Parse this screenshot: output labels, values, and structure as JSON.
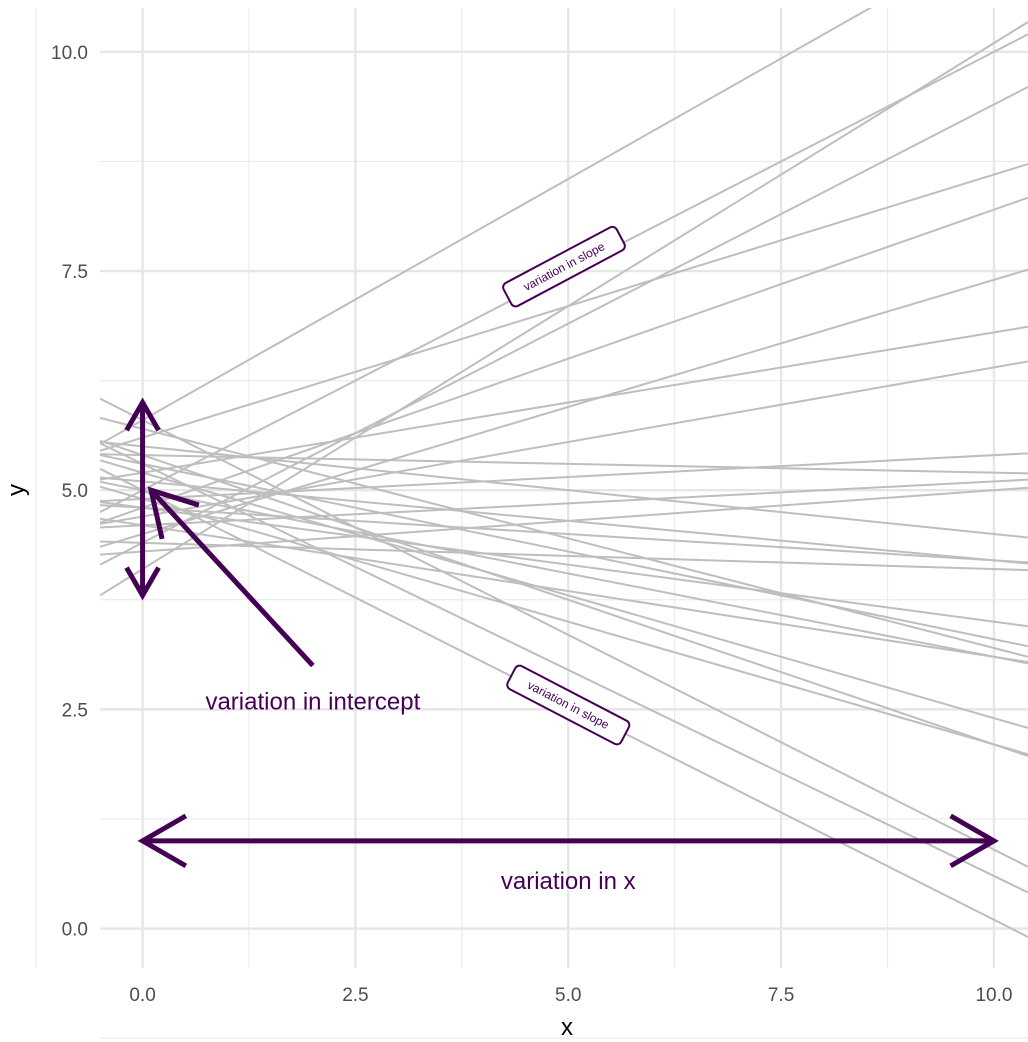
{
  "chart_data": {
    "type": "line",
    "xlabel": "x",
    "ylabel": "y",
    "xlim": [
      -0.5,
      10.4
    ],
    "ylim": [
      -0.45,
      10.5
    ],
    "x_ticks": [
      0,
      2.5,
      5,
      7.5,
      10
    ],
    "y_ticks": [
      0,
      2.5,
      5,
      7.5,
      10
    ],
    "x_tick_labels": [
      "0.0",
      "2.5",
      "5.0",
      "7.5",
      "10.0"
    ],
    "y_tick_labels": [
      "0.0",
      "2.5",
      "5.0",
      "7.5",
      "10.0"
    ],
    "grid": true,
    "line_color": "#bebebe",
    "accent_color": "#440154",
    "lines": [
      {
        "intercept": 5.8,
        "slope": 0.55
      },
      {
        "intercept": 4.1,
        "slope": 0.6
      },
      {
        "intercept": 5.0,
        "slope": 0.5
      },
      {
        "intercept": 4.4,
        "slope": 0.5
      },
      {
        "intercept": 5.6,
        "slope": 0.3
      },
      {
        "intercept": 4.8,
        "slope": 0.34
      },
      {
        "intercept": 4.5,
        "slope": 0.29
      },
      {
        "intercept": 5.2,
        "slope": 0.16
      },
      {
        "intercept": 4.7,
        "slope": 0.17
      },
      {
        "intercept": 5.4,
        "slope": -0.02
      },
      {
        "intercept": 4.9,
        "slope": 0.05
      },
      {
        "intercept": 4.6,
        "slope": 0.05
      },
      {
        "intercept": 5.5,
        "slope": -0.1
      },
      {
        "intercept": 4.4,
        "slope": -0.03
      },
      {
        "intercept": 5.1,
        "slope": -0.09
      },
      {
        "intercept": 4.8,
        "slope": -0.06
      },
      {
        "intercept": 5.3,
        "slope": -0.2
      },
      {
        "intercept": 5.0,
        "slope": -0.19
      },
      {
        "intercept": 4.6,
        "slope": -0.15
      },
      {
        "intercept": 5.7,
        "slope": -0.25
      },
      {
        "intercept": 5.2,
        "slope": -0.28
      },
      {
        "intercept": 4.9,
        "slope": -0.28
      },
      {
        "intercept": 5.4,
        "slope": -0.33
      },
      {
        "intercept": 5.8,
        "slope": -0.49
      },
      {
        "intercept": 5.3,
        "slope": -0.47
      },
      {
        "intercept": 5.0,
        "slope": -0.49
      },
      {
        "intercept": 4.8,
        "slope": -0.13
      },
      {
        "intercept": 4.3,
        "slope": 0.07
      }
    ],
    "annotations": [
      {
        "text": "variation in intercept",
        "x": 2.0,
        "y": 2.5
      },
      {
        "text": "variation in x",
        "x": 5.0,
        "y": 0.45
      },
      {
        "text": "variation in slope",
        "x": 4.95,
        "y": 7.55,
        "angle": -28.0
      },
      {
        "text": "variation in slope",
        "x": 5.0,
        "y": 2.55,
        "angle": 27.5
      }
    ]
  }
}
